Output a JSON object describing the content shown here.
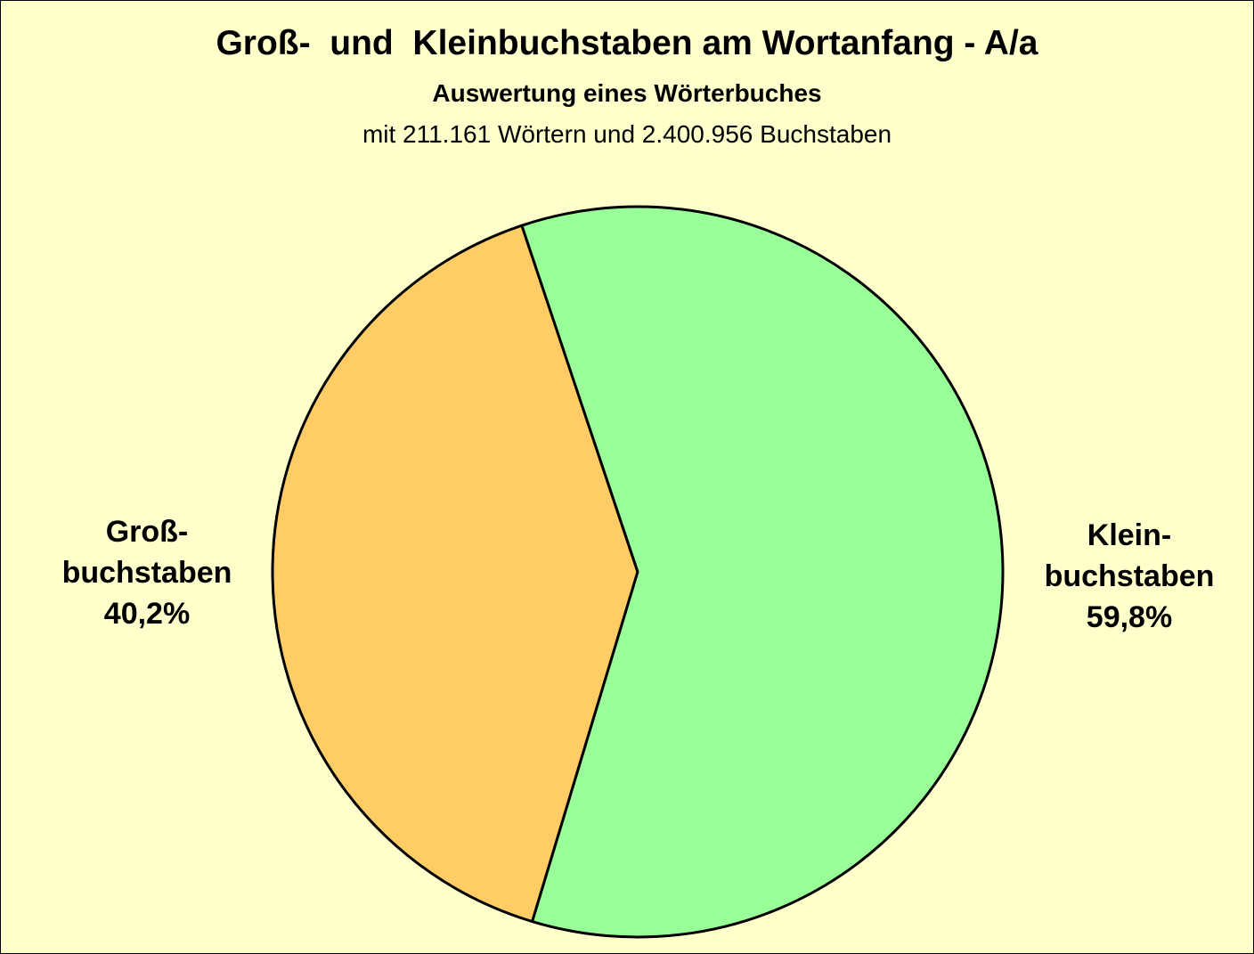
{
  "chart_data": {
    "type": "pie",
    "title": "Groß-  und  Kleinbuchstaben am Wortanfang - A/a",
    "subtitle": "Auswertung eines Wörterbuches",
    "subtitle2": "mit 211.161 Wörtern und 2.400.956 Buchstaben",
    "slices": [
      {
        "name": "Großbuchstaben",
        "value": 40.2,
        "label_lines": [
          "Groß-",
          "buchstaben",
          "40,2%"
        ],
        "color": "#ffcc66"
      },
      {
        "name": "Kleinbuchstaben",
        "value": 59.8,
        "label_lines": [
          "Klein-",
          "buchstaben",
          "59,8%"
        ],
        "color": "#99ff99"
      }
    ]
  },
  "colors": {
    "background": "#ffffcc",
    "outline": "#000000"
  }
}
